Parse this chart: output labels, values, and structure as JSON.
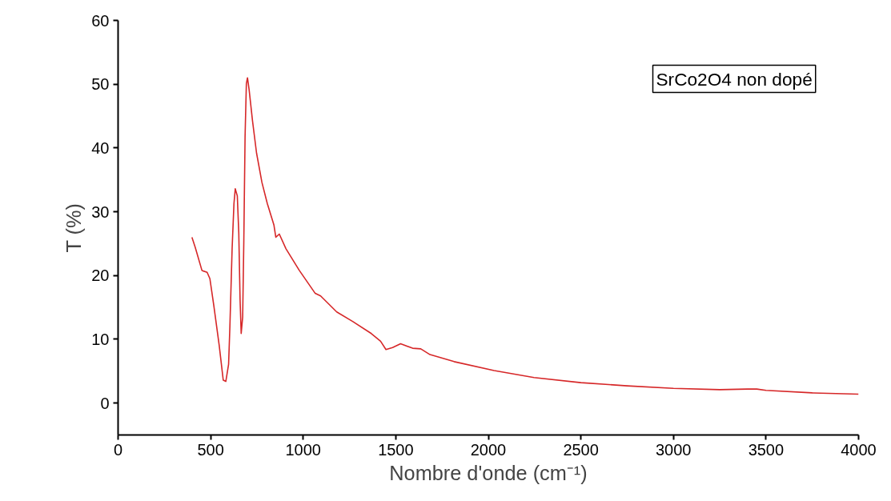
{
  "chart_data": {
    "type": "line",
    "xlabel": "Nombre d'onde (cm⁻¹)",
    "ylabel": "T (%)",
    "xlim": [
      0,
      4000
    ],
    "ylim": [
      -5,
      60
    ],
    "xticks": [
      0,
      500,
      1000,
      1500,
      2000,
      2500,
      3000,
      3500,
      4000
    ],
    "yticks": [
      0,
      10,
      20,
      30,
      40,
      50,
      60
    ],
    "grid": false,
    "marker": "none",
    "line_style": "solid",
    "annotations": [
      "SrCo2O4 non dopé"
    ],
    "series": [
      {
        "color": "#d62728",
        "x": [
          399,
          417,
          453,
          481,
          496,
          517,
          546,
          568,
          582,
          597,
          604,
          616,
          626,
          633,
          644,
          652,
          659,
          665,
          673,
          679,
          686,
          693,
          699,
          708,
          726,
          748,
          777,
          806,
          842,
          852,
          871,
          907,
          979,
          1065,
          1094,
          1181,
          1267,
          1368,
          1418,
          1447,
          1483,
          1526,
          1591,
          1635,
          1685,
          1815,
          2031,
          2247,
          2500,
          2750,
          3000,
          3250,
          3400,
          3450,
          3500,
          3750,
          4000
        ],
        "values": [
          26.0,
          24.4,
          20.8,
          20.5,
          19.5,
          15.3,
          9.1,
          3.6,
          3.4,
          6.1,
          12.0,
          24.2,
          31.3,
          33.6,
          32.5,
          26.7,
          16.2,
          10.9,
          13.5,
          25.0,
          41.8,
          50.1,
          51.0,
          49.1,
          44.3,
          39.2,
          34.6,
          31.3,
          27.9,
          26.0,
          26.5,
          24.2,
          20.8,
          17.2,
          16.8,
          14.3,
          12.8,
          10.9,
          9.7,
          8.4,
          8.7,
          9.3,
          8.6,
          8.5,
          7.6,
          6.5,
          5.1,
          4.0,
          3.2,
          2.7,
          2.3,
          2.1,
          2.2,
          2.2,
          2.0,
          1.6,
          1.4
        ]
      }
    ]
  }
}
